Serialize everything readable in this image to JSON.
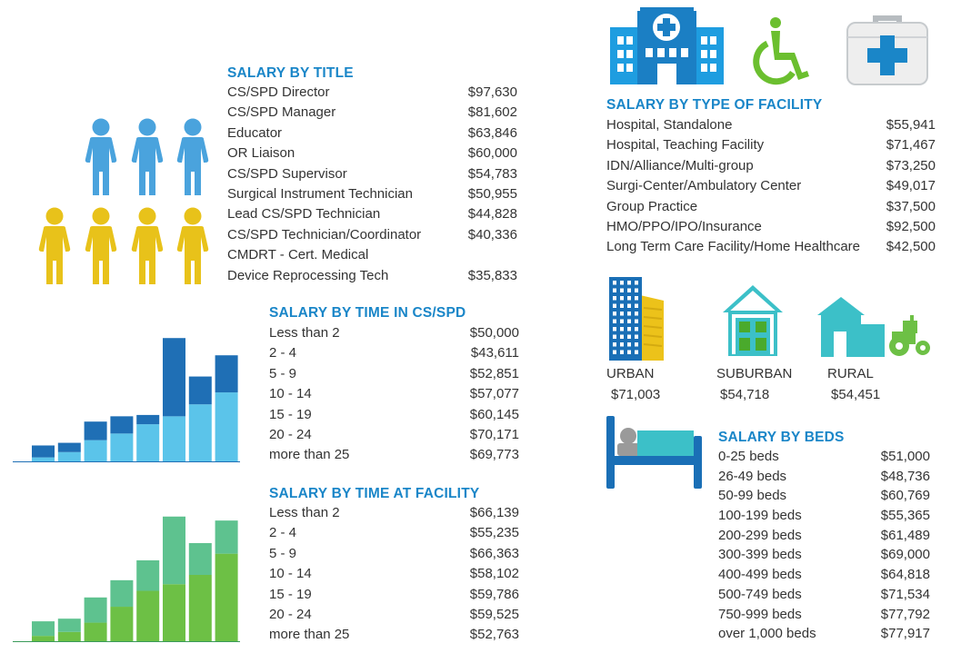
{
  "colors": {
    "heading": "#1a86c8",
    "people_blue": "#4aa3dd",
    "people_yellow": "#e8c21a",
    "bar_dark_blue": "#1f6fb5",
    "bar_light_blue": "#5bc4ea",
    "bar_dark_green": "#5ec28f",
    "bar_light_green": "#6dc045",
    "text": "#333333"
  },
  "title_section": {
    "heading": "SALARY BY TITLE",
    "rows": [
      {
        "label": "CS/SPD Director",
        "value": "$97,630"
      },
      {
        "label": "CS/SPD Manager",
        "value": "$81,602"
      },
      {
        "label": "Educator",
        "value": "$63,846"
      },
      {
        "label": "OR Liaison",
        "value": "$60,000"
      },
      {
        "label": "CS/SPD Supervisor",
        "value": "$54,783"
      },
      {
        "label": "Surgical Instrument Technician",
        "value": "$50,955"
      },
      {
        "label": "Lead CS/SPD Technician",
        "value": "$44,828"
      },
      {
        "label": "CS/SPD Technician/Coordinator",
        "value": "$40,336"
      },
      {
        "label": "CMDRT - Cert. Medical",
        "value": ""
      },
      {
        "label": "Device Reprocessing Tech",
        "value": "$35,833"
      }
    ]
  },
  "cspd_time_section": {
    "heading": "SALARY BY TIME IN CS/SPD",
    "rows": [
      {
        "label": "Less than 2",
        "value": "$50,000"
      },
      {
        "label": "2 - 4",
        "value": "$43,611"
      },
      {
        "label": "5 - 9",
        "value": "$52,851"
      },
      {
        "label": "10 - 14",
        "value": "$57,077"
      },
      {
        "label": "15 - 19",
        "value": "$60,145"
      },
      {
        "label": "20 - 24",
        "value": "$70,171"
      },
      {
        "label": "more than 25",
        "value": "$69,773"
      }
    ]
  },
  "facility_time_section": {
    "heading": "SALARY BY TIME AT FACILITY",
    "rows": [
      {
        "label": "Less than 2",
        "value": "$66,139"
      },
      {
        "label": "2 - 4",
        "value": "$55,235"
      },
      {
        "label": "5 - 9",
        "value": "$66,363"
      },
      {
        "label": "10 - 14",
        "value": "$58,102"
      },
      {
        "label": "15 - 19",
        "value": "$59,786"
      },
      {
        "label": "20 - 24",
        "value": "$59,525"
      },
      {
        "label": "more than 25",
        "value": "$52,763"
      }
    ]
  },
  "facility_type_section": {
    "heading": "SALARY BY TYPE OF FACILITY",
    "rows": [
      {
        "label": "Hospital, Standalone",
        "value": "$55,941"
      },
      {
        "label": "Hospital, Teaching Facility",
        "value": "$71,467"
      },
      {
        "label": "IDN/Alliance/Multi-group",
        "value": "$73,250"
      },
      {
        "label": "Surgi-Center/Ambulatory Center",
        "value": "$49,017"
      },
      {
        "label": "Group Practice",
        "value": "$37,500"
      },
      {
        "label": "HMO/PPO/IPO/Insurance",
        "value": "$92,500"
      },
      {
        "label": "Long Term Care Facility/Home Healthcare",
        "value": "$42,500"
      }
    ]
  },
  "location_section": {
    "items": [
      {
        "label": "URBAN",
        "value": "$71,003",
        "icon": "city-building-icon"
      },
      {
        "label": "SUBURBAN",
        "value": "$54,718",
        "icon": "house-icon"
      },
      {
        "label": "RURAL",
        "value": "$54,451",
        "icon": "farm-tractor-icon"
      }
    ]
  },
  "beds_section": {
    "heading": "SALARY BY BEDS",
    "rows": [
      {
        "label": "0-25 beds",
        "value": "$51,000"
      },
      {
        "label": "26-49 beds",
        "value": "$48,736"
      },
      {
        "label": "50-99 beds",
        "value": "$60,769"
      },
      {
        "label": "100-199 beds",
        "value": "$55,365"
      },
      {
        "label": "200-299 beds",
        "value": "$61,489"
      },
      {
        "label": "300-399 beds",
        "value": "$69,000"
      },
      {
        "label": "400-499 beds",
        "value": "$64,818"
      },
      {
        "label": "500-749 beds",
        "value": "$71,534"
      },
      {
        "label": "750-999 beds",
        "value": "$77,792"
      },
      {
        "label": "over 1,000 beds",
        "value": "$77,917"
      }
    ]
  },
  "chart_data": [
    {
      "type": "bar",
      "stacked": true,
      "categories": [
        "1",
        "2",
        "3",
        "4",
        "5",
        "6",
        "7",
        "8"
      ],
      "series": [
        {
          "values": [
            3,
            7,
            16,
            21,
            28,
            34,
            43,
            52
          ]
        },
        {
          "values": [
            9,
            7,
            14,
            13,
            7,
            59,
            21,
            28
          ]
        }
      ],
      "ylim": [
        0,
        100
      ]
    },
    {
      "type": "bar",
      "stacked": true,
      "categories": [
        "1",
        "2",
        "3",
        "4",
        "5",
        "6",
        "7",
        "8"
      ],
      "series": [
        {
          "values": [
            4,
            7,
            14,
            26,
            38,
            43,
            50,
            66
          ]
        },
        {
          "values": [
            11,
            10,
            19,
            20,
            23,
            51,
            24,
            25
          ]
        }
      ],
      "ylim": [
        0,
        100
      ]
    }
  ]
}
